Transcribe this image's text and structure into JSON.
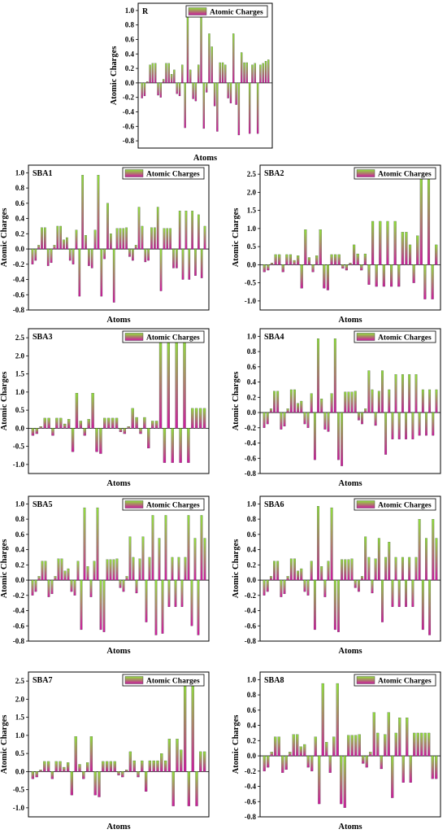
{
  "legend_label": "Atomic Charges",
  "colors": {
    "bar_top": "#8fe03a",
    "bar_bottom": "#cc1a9e",
    "frame": "#000000"
  },
  "chart_data": [
    {
      "type": "bar",
      "title": "R",
      "xlabel": "Atoms",
      "ylabel": "Atomic Charges",
      "ylim": [
        -0.9,
        1.1
      ],
      "yticks": [
        -0.8,
        -0.6,
        -0.4,
        -0.2,
        0.0,
        0.2,
        0.4,
        0.6,
        0.8,
        1.0
      ],
      "grid": false,
      "legend": "top-right",
      "series": [
        {
          "name": "Atomic Charges",
          "values": [
            -0.21,
            -0.18,
            0.02,
            0.25,
            0.27,
            0.27,
            -0.17,
            -0.2,
            0.05,
            0.27,
            0.27,
            0.12,
            0.18,
            -0.15,
            -0.18,
            0.25,
            -0.62,
            0.93,
            0.18,
            -0.22,
            -0.25,
            0.25,
            0.95,
            -0.63,
            -0.13,
            0.68,
            0.5,
            -0.32,
            -0.67,
            0.28,
            0.28,
            0.25,
            -0.21,
            -0.28,
            0.68,
            -0.3,
            -0.72,
            0.42,
            0.28,
            0.28,
            -0.7,
            0.25,
            0.27,
            -0.7,
            0.25,
            0.27,
            0.3,
            0.32
          ]
        }
      ]
    },
    {
      "type": "bar",
      "title": "SBA1",
      "xlabel": "Atoms",
      "ylabel": "Atomic Charges",
      "ylim": [
        -0.8,
        1.1
      ],
      "yticks": [
        -0.8,
        -0.6,
        -0.4,
        -0.2,
        0.0,
        0.2,
        0.4,
        0.6,
        0.8,
        1.0
      ],
      "grid": false,
      "legend": "top-right",
      "series": [
        {
          "name": "Atomic Charges",
          "values": [
            -0.2,
            -0.15,
            0.05,
            0.28,
            0.28,
            -0.22,
            -0.18,
            0.05,
            0.3,
            0.3,
            0.12,
            0.15,
            -0.15,
            -0.2,
            0.25,
            -0.62,
            0.97,
            0.18,
            -0.22,
            -0.25,
            0.25,
            0.97,
            -0.62,
            -0.13,
            0.6,
            0.2,
            -0.7,
            0.27,
            0.27,
            0.27,
            0.28,
            -0.1,
            -0.15,
            0.05,
            0.55,
            0.3,
            -0.17,
            -0.15,
            0.28,
            0.28,
            0.55,
            -0.55,
            0.27,
            0.27,
            0.27,
            -0.25,
            -0.25,
            0.5,
            -0.4,
            0.5,
            -0.4,
            0.5,
            -0.35,
            0.45,
            -0.38,
            0.3
          ]
        }
      ]
    },
    {
      "type": "bar",
      "title": "SBA2",
      "xlabel": "Atoms",
      "ylabel": "Atomic Charges",
      "ylim": [
        -1.25,
        2.75
      ],
      "yticks": [
        -1.0,
        -0.5,
        0.0,
        0.5,
        1.0,
        1.5,
        2.0,
        2.5
      ],
      "grid": false,
      "legend": "top-right",
      "series": [
        {
          "name": "Atomic Charges",
          "values": [
            -0.2,
            -0.15,
            0.05,
            0.28,
            0.28,
            -0.2,
            0.28,
            0.28,
            0.12,
            0.25,
            -0.65,
            0.97,
            0.2,
            -0.2,
            0.25,
            0.97,
            -0.65,
            -0.7,
            0.28,
            0.28,
            0.28,
            -0.1,
            -0.15,
            0.05,
            0.55,
            0.3,
            -0.15,
            0.3,
            -0.55,
            1.2,
            -0.6,
            1.2,
            -0.6,
            1.2,
            -0.6,
            1.2,
            -0.6,
            0.9,
            0.9,
            0.55,
            -0.5,
            0.8,
            2.45,
            -0.95,
            2.45,
            -0.95,
            0.55
          ]
        }
      ]
    },
    {
      "type": "bar",
      "title": "SBA3",
      "xlabel": "Atoms",
      "ylabel": "Atomic Charges",
      "ylim": [
        -1.25,
        2.75
      ],
      "yticks": [
        -1.0,
        -0.5,
        0.0,
        0.5,
        1.0,
        1.5,
        2.0,
        2.5
      ],
      "grid": false,
      "legend": "top-right",
      "series": [
        {
          "name": "Atomic Charges",
          "values": [
            -0.2,
            -0.15,
            0.05,
            0.28,
            0.28,
            -0.2,
            0.28,
            0.28,
            0.12,
            0.25,
            -0.65,
            0.97,
            0.2,
            -0.2,
            0.25,
            0.97,
            -0.65,
            -0.7,
            0.28,
            0.28,
            0.28,
            0.28,
            -0.1,
            -0.15,
            0.05,
            0.55,
            0.3,
            -0.15,
            0.3,
            -0.55,
            0.2,
            0.2,
            2.45,
            -0.95,
            2.45,
            -0.95,
            2.45,
            -0.95,
            2.45,
            -0.95,
            0.55,
            0.55,
            0.55,
            0.55
          ]
        }
      ]
    },
    {
      "type": "bar",
      "title": "SBA4",
      "xlabel": "Atoms",
      "ylabel": "Atomic Charges",
      "ylim": [
        -0.8,
        1.1
      ],
      "yticks": [
        -0.8,
        -0.6,
        -0.4,
        -0.2,
        0.0,
        0.2,
        0.4,
        0.6,
        0.8,
        1.0
      ],
      "grid": false,
      "legend": "top-right",
      "series": [
        {
          "name": "Atomic Charges",
          "values": [
            -0.2,
            -0.15,
            0.05,
            0.28,
            0.28,
            -0.22,
            -0.18,
            0.05,
            0.3,
            0.3,
            0.12,
            0.15,
            -0.15,
            -0.2,
            0.25,
            -0.62,
            0.97,
            0.18,
            -0.22,
            -0.25,
            0.25,
            0.97,
            -0.62,
            -0.7,
            0.27,
            0.27,
            0.27,
            0.28,
            -0.1,
            -0.15,
            0.05,
            0.55,
            0.3,
            -0.17,
            0.28,
            0.55,
            -0.55,
            0.3,
            -0.35,
            0.5,
            -0.35,
            0.5,
            -0.35,
            0.5,
            -0.35,
            0.5,
            -0.3,
            0.3,
            -0.3,
            0.3,
            -0.3,
            0.3
          ]
        }
      ]
    },
    {
      "type": "bar",
      "title": "SBA5",
      "xlabel": "Atoms",
      "ylabel": "Atomic Charges",
      "ylim": [
        -0.8,
        1.1
      ],
      "yticks": [
        -0.8,
        -0.6,
        -0.4,
        -0.2,
        0.0,
        0.2,
        0.4,
        0.6,
        0.8,
        1.0
      ],
      "grid": false,
      "legend": "top-right",
      "series": [
        {
          "name": "Atomic Charges",
          "values": [
            -0.2,
            -0.15,
            0.05,
            0.25,
            0.25,
            -0.22,
            -0.18,
            0.05,
            0.28,
            0.28,
            0.12,
            0.15,
            -0.15,
            -0.2,
            0.25,
            -0.65,
            0.95,
            0.18,
            -0.22,
            0.25,
            0.95,
            -0.65,
            -0.68,
            0.27,
            0.27,
            0.27,
            0.28,
            -0.1,
            -0.15,
            0.05,
            0.57,
            0.3,
            -0.17,
            0.28,
            0.57,
            -0.55,
            0.3,
            0.85,
            -0.72,
            0.55,
            -0.7,
            0.85,
            -0.35,
            0.3,
            -0.35,
            0.3,
            -0.35,
            0.3,
            0.85,
            -0.6,
            0.55,
            -0.72,
            0.85,
            0.55
          ]
        }
      ]
    },
    {
      "type": "bar",
      "title": "SBA6",
      "xlabel": "Atoms",
      "ylabel": "Atomic Charges",
      "ylim": [
        -0.8,
        1.1
      ],
      "yticks": [
        -0.8,
        -0.6,
        -0.4,
        -0.2,
        0.0,
        0.2,
        0.4,
        0.6,
        0.8,
        1.0
      ],
      "grid": false,
      "legend": "top-right",
      "series": [
        {
          "name": "Atomic Charges",
          "values": [
            -0.2,
            -0.15,
            0.05,
            0.25,
            0.25,
            -0.22,
            -0.18,
            0.05,
            0.28,
            0.28,
            0.12,
            0.15,
            -0.15,
            -0.2,
            0.25,
            -0.65,
            0.97,
            0.18,
            -0.22,
            0.25,
            0.95,
            -0.65,
            -0.68,
            0.27,
            0.27,
            0.27,
            0.28,
            -0.1,
            -0.15,
            0.05,
            0.57,
            0.3,
            -0.17,
            0.28,
            0.55,
            -0.55,
            0.3,
            0.5,
            -0.35,
            0.3,
            -0.35,
            0.3,
            -0.35,
            0.3,
            -0.35,
            0.3,
            0.8,
            -0.65,
            0.55,
            -0.72,
            0.8,
            0.55
          ]
        }
      ]
    },
    {
      "type": "bar",
      "title": "SBA7",
      "xlabel": "Atoms",
      "ylabel": "Atomic Charges",
      "ylim": [
        -1.25,
        2.75
      ],
      "yticks": [
        -1.0,
        -0.5,
        0.0,
        0.5,
        1.0,
        1.5,
        2.0,
        2.5
      ],
      "grid": false,
      "legend": "top-right",
      "series": [
        {
          "name": "Atomic Charges",
          "values": [
            -0.2,
            -0.15,
            0.05,
            0.28,
            0.28,
            -0.2,
            0.28,
            0.28,
            0.12,
            0.25,
            -0.65,
            0.97,
            0.2,
            -0.2,
            0.25,
            0.97,
            -0.65,
            -0.7,
            0.28,
            0.28,
            0.28,
            0.28,
            -0.1,
            -0.15,
            0.05,
            0.55,
            0.3,
            -0.15,
            0.3,
            -0.55,
            0.3,
            0.3,
            0.3,
            0.5,
            0.3,
            0.9,
            -0.95,
            0.9,
            0.6,
            2.45,
            -0.95,
            2.45,
            -0.95,
            0.55,
            0.55
          ]
        }
      ]
    },
    {
      "type": "bar",
      "title": "SBA8",
      "xlabel": "Atoms",
      "ylabel": "Atomic Charges",
      "ylim": [
        -0.8,
        1.1
      ],
      "yticks": [
        -0.8,
        -0.6,
        -0.4,
        -0.2,
        0.0,
        0.2,
        0.4,
        0.6,
        0.8,
        1.0
      ],
      "grid": false,
      "legend": "top-right",
      "series": [
        {
          "name": "Atomic Charges",
          "values": [
            -0.2,
            -0.15,
            0.05,
            0.25,
            0.25,
            -0.22,
            -0.18,
            0.05,
            0.28,
            0.28,
            0.12,
            0.15,
            -0.15,
            -0.2,
            0.25,
            -0.63,
            0.95,
            0.18,
            -0.22,
            0.25,
            0.95,
            -0.63,
            -0.68,
            0.27,
            0.27,
            0.27,
            0.28,
            -0.1,
            -0.15,
            0.05,
            0.57,
            0.3,
            -0.17,
            0.28,
            0.57,
            -0.55,
            0.3,
            0.5,
            -0.35,
            0.5,
            -0.35,
            0.3,
            0.3,
            0.3,
            0.3,
            0.3,
            -0.3,
            -0.3
          ]
        }
      ]
    }
  ]
}
